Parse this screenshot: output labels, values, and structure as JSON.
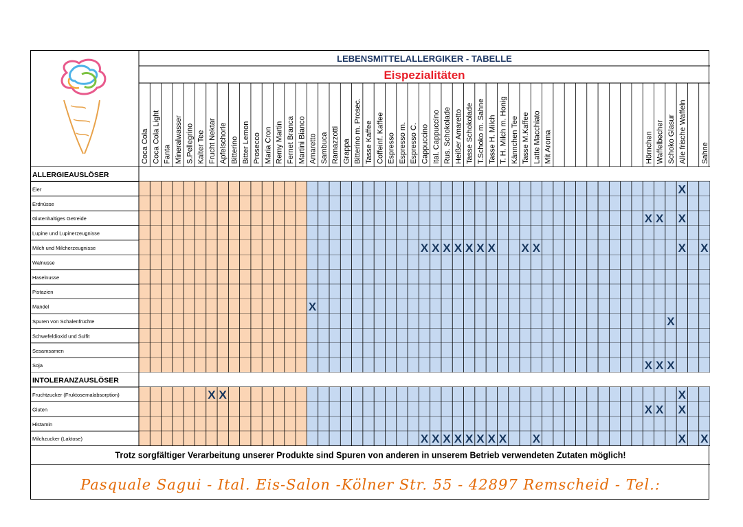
{
  "title": "LEBENSMITTELALLERGIKER - TABELLE",
  "subtitle": "Eispezialitäten",
  "colors": {
    "orange_fill": "#FBD5B5",
    "blue_fill": "#C6D9F1",
    "subtitle": "#E8202A",
    "mark": "#17365D",
    "footer_text": "#E46C0A"
  },
  "logo": "ice-cream-cone-icon",
  "mark_symbol": "X",
  "columns": [
    "Coca Cola",
    "Coca Cola Light",
    "Fanta",
    "Mineralwasser",
    "S.Pellegrino",
    "Kalter Tee",
    "Frucht Nektar",
    "Apfelschorle",
    "Bitterino",
    "Bitter Lemon",
    "Prosecco",
    "Maria Cron",
    "Remy Martin",
    "Fernet Branca",
    "Martini Bianco",
    "Amaretto",
    "Sambuca",
    "Ramazzotti",
    "Grappa",
    "Bitterino m. Prosec.",
    "Tasse Kaffee",
    "Coffeinf. Kaffee",
    "Espresso",
    "Espresso m.",
    "Espresso C.",
    "Cappuccino",
    "Ital. Cappuccino",
    "Rus. Schokolade",
    "Heißer Amaretto",
    "Tasse Schokolade",
    "T.Schoko m. Sahne",
    "Tasse H. Milch",
    "T. H. Milch m. Honig",
    "Kännchen Tee",
    "Tasse M.Kaffee",
    "Latte Macchiato",
    "Mit Aroma",
    "",
    "",
    "",
    "",
    "",
    "",
    "",
    "",
    "Hörnchen",
    "Waffelbecher",
    "Schoko Glasur",
    "Alle frische Waffeln",
    "",
    "Sahne"
  ],
  "section_allergens": {
    "heading": "ALLERGIEAUSLÖSER",
    "rows": [
      {
        "label": "Eier",
        "marks": [
          48
        ]
      },
      {
        "label": "Erdnüsse",
        "marks": []
      },
      {
        "label": "Glutenhaltiges Getreide",
        "marks": [
          45,
          46,
          48
        ]
      },
      {
        "label": "Lupine und Lupinerzeugnisse",
        "marks": []
      },
      {
        "label": "Milch und Milcherzeugnisse",
        "marks": [
          25,
          26,
          27,
          28,
          29,
          30,
          31,
          34,
          35,
          48,
          50
        ]
      },
      {
        "label": "Walnusse",
        "marks": []
      },
      {
        "label": "Haselnusse",
        "marks": []
      },
      {
        "label": "Pistazien",
        "marks": []
      },
      {
        "label": "Mandel",
        "marks": [
          15
        ]
      },
      {
        "label": "Spuren von Schalenfrüchte",
        "marks": [
          47
        ]
      },
      {
        "label": "Schwefeldioxid und Sulfit",
        "marks": []
      },
      {
        "label": "Sesamsamen",
        "marks": []
      },
      {
        "label": "Soja",
        "marks": [
          45,
          46,
          47
        ]
      }
    ]
  },
  "section_intolerances": {
    "heading": "INTOLERANZAUSLÖSER",
    "rows": [
      {
        "label": "Fruchtzucker (Fruktosemalabsorption)",
        "marks": [
          6,
          7,
          48
        ]
      },
      {
        "label": "Gluten",
        "marks": [
          45,
          46,
          48
        ]
      },
      {
        "label": "Histamin",
        "marks": []
      },
      {
        "label": "Milchzucker (Laktose)",
        "marks": [
          25,
          26,
          27,
          28,
          29,
          30,
          31,
          32,
          35,
          48,
          50
        ]
      }
    ]
  },
  "disclaimer": "Trotz sorgfältiger Verarbeitung unserer Produkte sind Spuren von anderen in unserem Betrieb verwendeten Zutaten möglich!",
  "footer": "Pasquale Sagui - Ital. Eis-Salon -Kölner Str. 55 - 42897 Remscheid - Tel.:"
}
